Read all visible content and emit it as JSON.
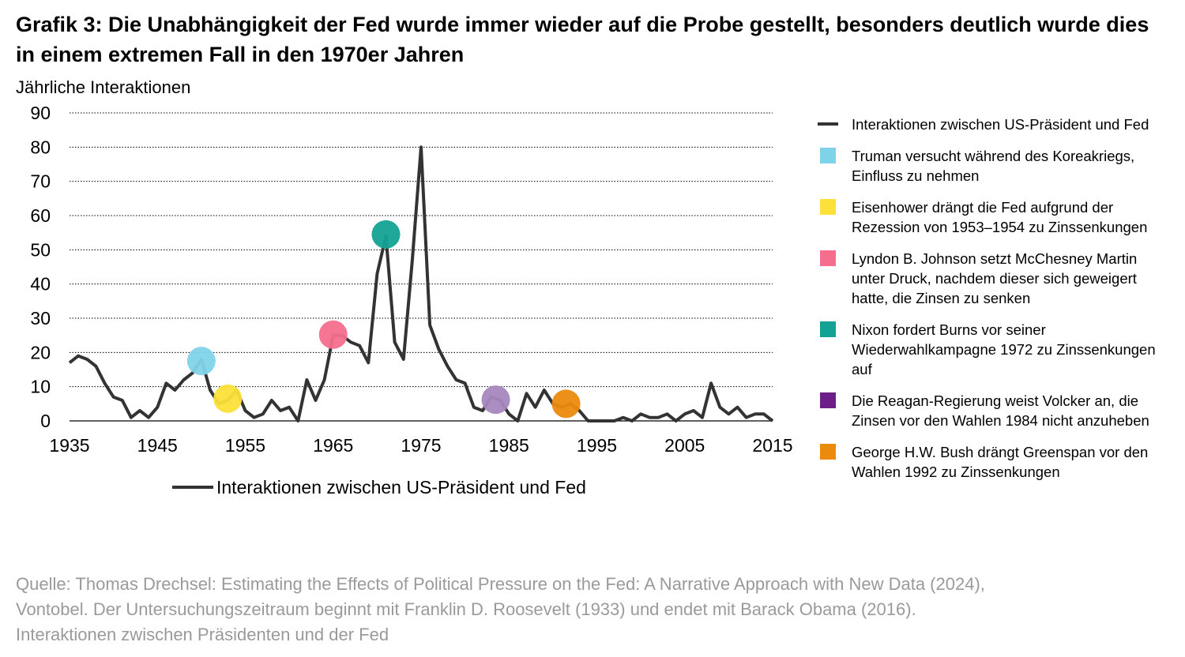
{
  "title": "Grafik 3: Die Unabhängigkeit der Fed wurde immer wieder auf die Probe gestellt, besonders deutlich wurde dies in einem extremen Fall in den 1970er Jahren",
  "chart_data": {
    "type": "line",
    "title": "Grafik 3: Die Unabhängigkeit der Fed wurde immer wieder auf die Probe gestellt, besonders deutlich wurde dies in einem extremen Fall in den 1970er Jahren",
    "ylabel": "Jährliche Interaktionen",
    "xlabel": "",
    "xlim": [
      1935,
      2015
    ],
    "ylim": [
      0,
      90
    ],
    "x_ticks": [
      "1935",
      "1945",
      "1955",
      "1965",
      "1975",
      "1985",
      "1995",
      "2005",
      "2015"
    ],
    "y_ticks": [
      "0",
      "10",
      "20",
      "30",
      "40",
      "50",
      "60",
      "70",
      "80",
      "90"
    ],
    "grid": "horizontal dotted",
    "legend_below": "Interaktionen zwischen US-Präsident und Fed",
    "series": [
      {
        "name": "Interaktionen zwischen US-Präsident und Fed",
        "color": "#333333",
        "x": [
          1935,
          1936,
          1937,
          1938,
          1939,
          1940,
          1941,
          1942,
          1943,
          1944,
          1945,
          1946,
          1947,
          1948,
          1949,
          1950,
          1951,
          1952,
          1953,
          1954,
          1955,
          1956,
          1957,
          1958,
          1959,
          1960,
          1961,
          1962,
          1963,
          1964,
          1965,
          1966,
          1967,
          1968,
          1969,
          1970,
          1971,
          1972,
          1973,
          1974,
          1975,
          1976,
          1977,
          1978,
          1979,
          1980,
          1981,
          1982,
          1983,
          1984,
          1985,
          1986,
          1987,
          1988,
          1989,
          1990,
          1991,
          1992,
          1993,
          1994,
          1995,
          1996,
          1997,
          1998,
          1999,
          2000,
          2001,
          2002,
          2003,
          2004,
          2005,
          2006,
          2007,
          2008,
          2009,
          2010,
          2011,
          2012,
          2013,
          2014,
          2015
        ],
        "y": [
          17,
          19,
          18,
          16,
          11,
          7,
          6,
          1,
          3,
          1,
          4,
          11,
          9,
          12,
          14,
          18,
          9,
          5,
          6,
          9,
          3,
          1,
          2,
          6,
          3,
          4,
          0,
          12,
          6,
          12,
          25,
          25,
          23,
          22,
          17,
          43,
          54,
          23,
          18,
          47,
          80,
          28,
          21,
          16,
          12,
          11,
          4,
          3,
          7,
          6,
          2,
          0,
          8,
          4,
          9,
          5,
          4,
          5,
          3,
          0,
          0,
          0,
          0,
          1,
          0,
          2,
          1,
          1,
          2,
          0,
          2,
          3,
          1,
          11,
          4,
          2,
          4,
          1,
          2,
          2,
          0
        ]
      }
    ],
    "events": [
      {
        "year": 1950,
        "value": 17.5,
        "color": "#7fd3e8",
        "label": "Truman versucht während des Koreakriegs, Einfluss zu nehmen"
      },
      {
        "year": 1953,
        "value": 6.5,
        "color": "#fde03a",
        "label": "Eisenhower drängt die Fed aufgrund der Rezession von 1953–1954 zu Zinssenkungen"
      },
      {
        "year": 1965,
        "value": 25.2,
        "color": "#f56e8d",
        "label": "Lyndon B. Johnson setzt McChesney Martin unter Druck, nachdem dieser sich geweigert hatte, die Zinsen zu senken"
      },
      {
        "year": 1971,
        "value": 54.5,
        "color": "#13a294",
        "label": "Nixon fordert Burns vor seiner Wiederwahlkampagne 1972 zu Zinssenkungen auf"
      },
      {
        "year": 1983.5,
        "value": 6.2,
        "color": "#a887bf",
        "legend_color": "#6e1f87",
        "label": "Die Reagan-Regierung weist Volcker an, die Zinsen vor den Wahlen 1984 nicht anzuheben"
      },
      {
        "year": 1991.5,
        "value": 5.0,
        "color": "#ec8a0e",
        "label": "George H.W. Bush drängt Greenspan vor den Wahlen 1992 zu Zinssenkungen"
      }
    ]
  },
  "source_lines": [
    "Quelle: Thomas Drechsel: Estimating the Effects of Political Pressure on the Fed: A Narrative Approach with New Data (2024),",
    "Vontobel. Der Untersuchungszeitraum beginnt mit Franklin D. Roosevelt (1933) und endet mit Barack Obama (2016).",
    "Interaktionen zwischen Präsidenten und der Fed"
  ]
}
